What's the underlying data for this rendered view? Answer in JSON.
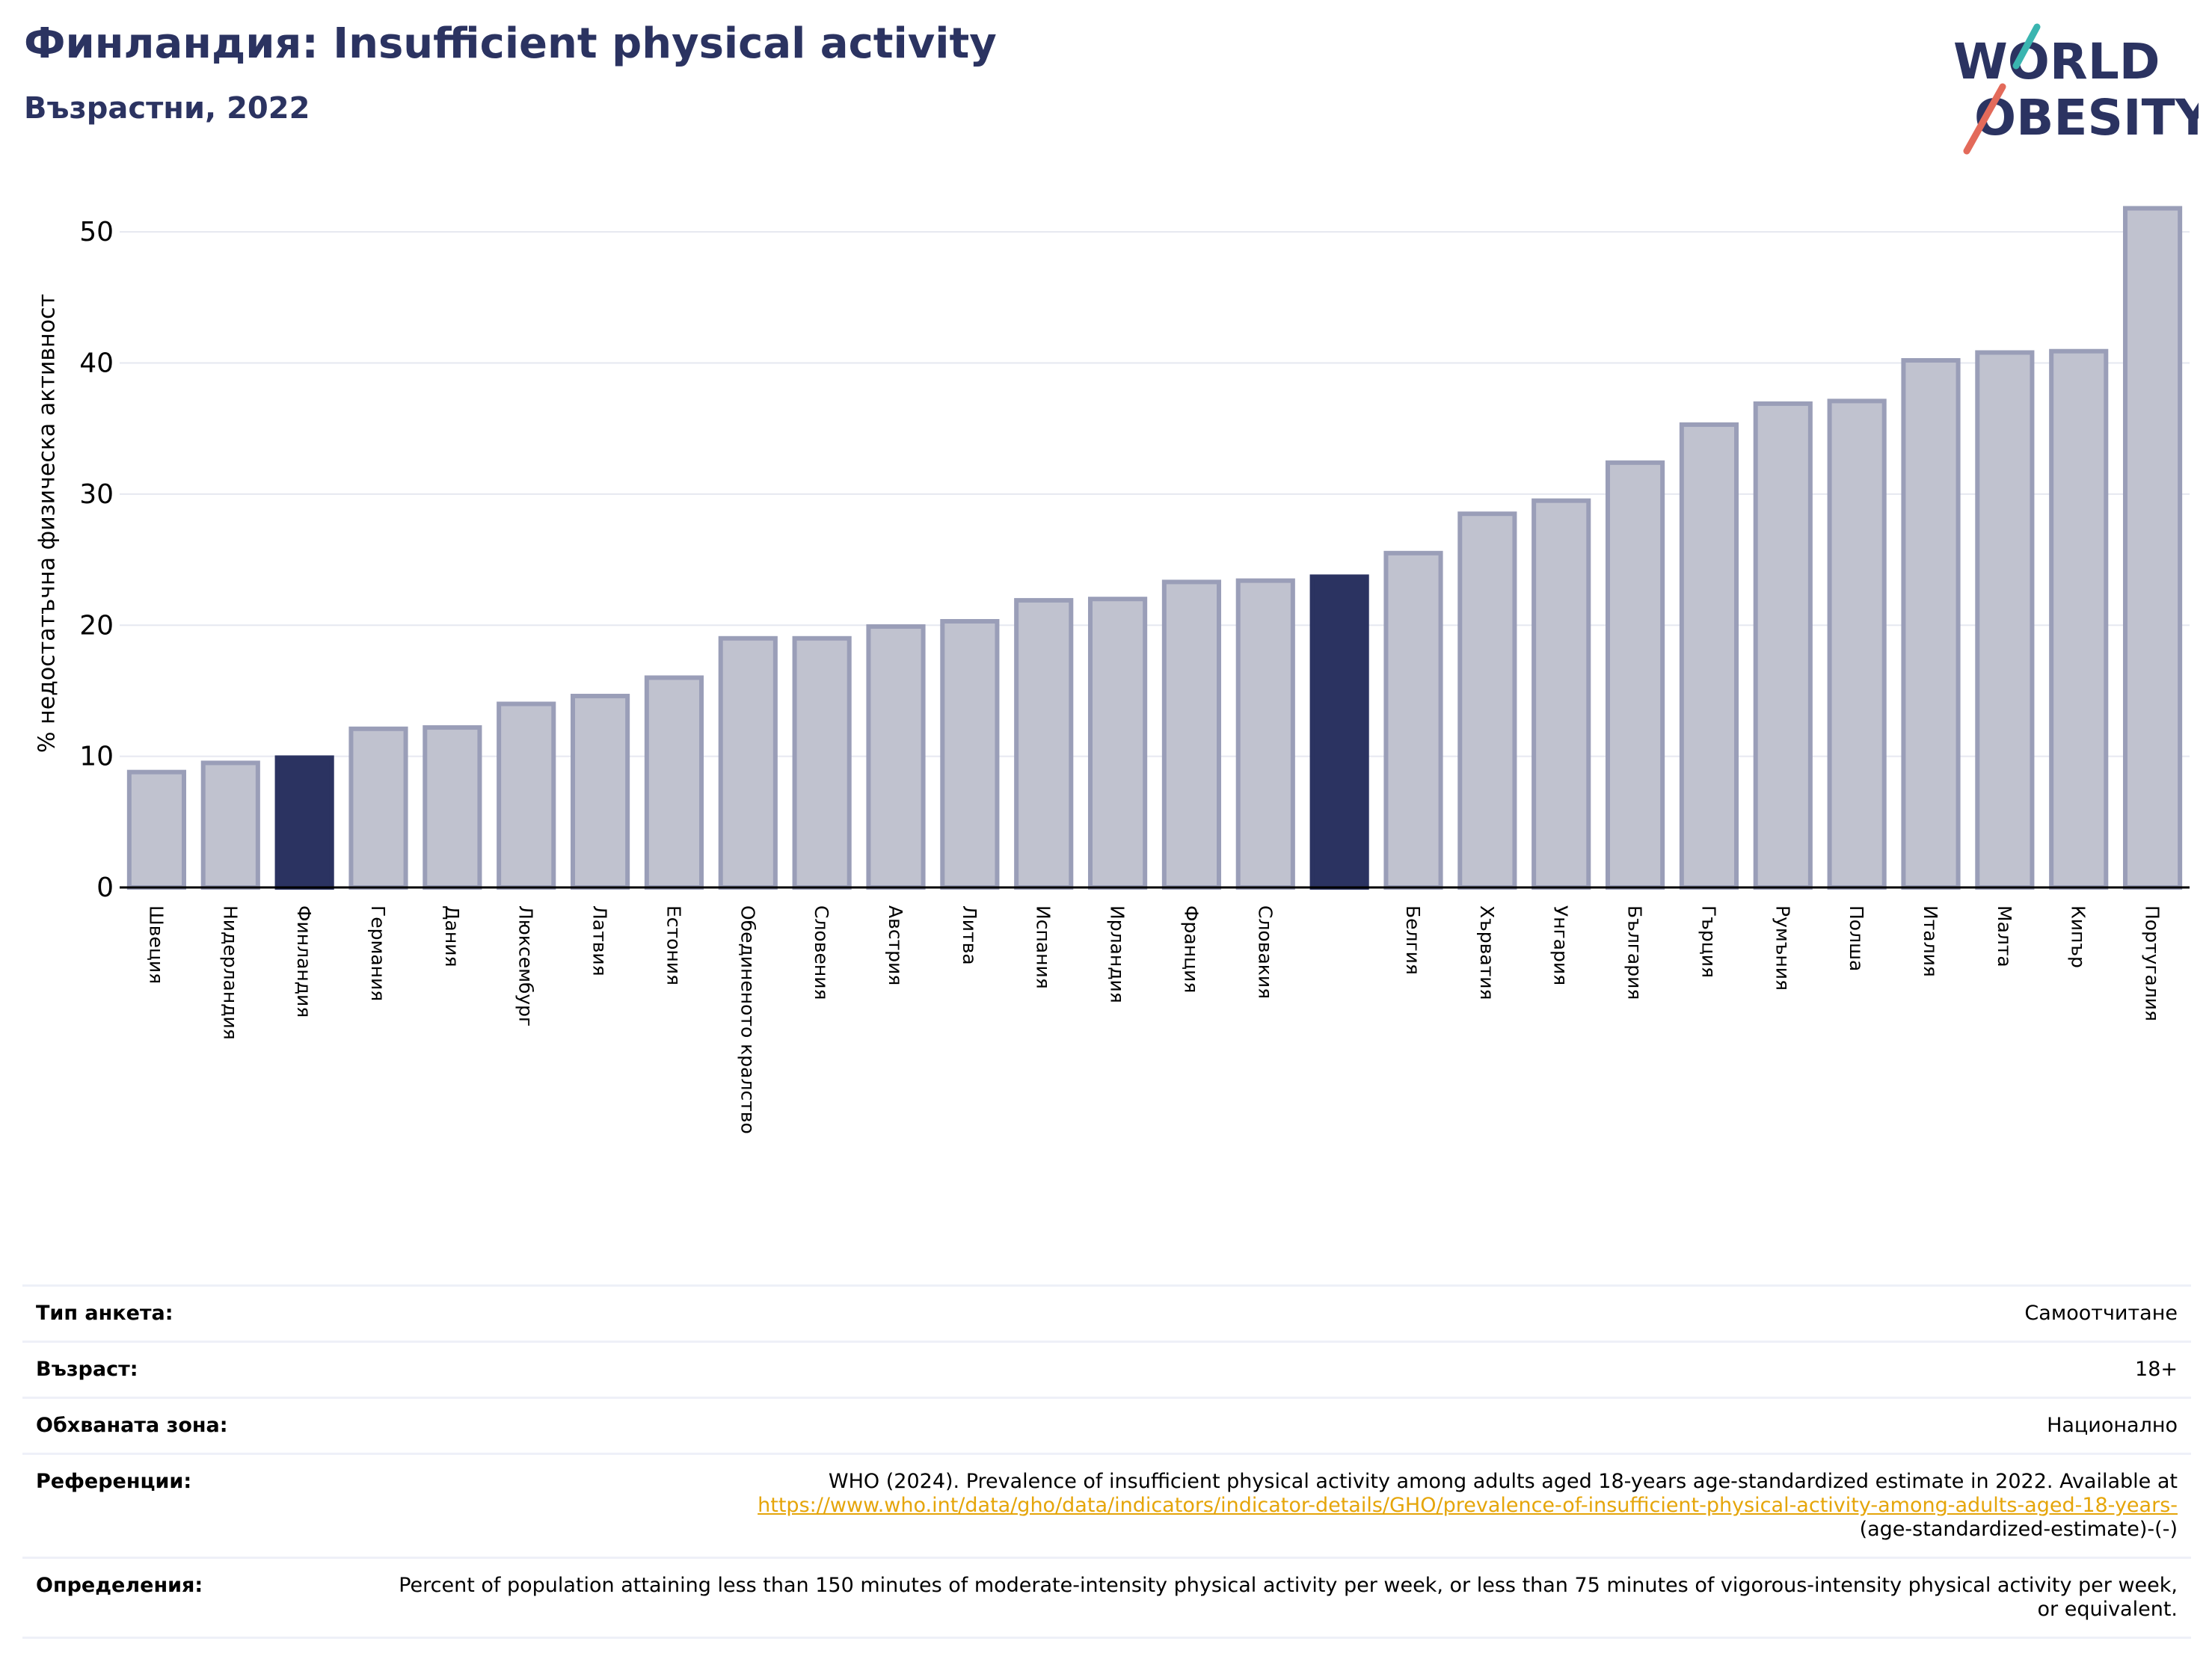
{
  "title": "Финландия: Insufficient physical activity",
  "subtitle": "Възрастни, 2022",
  "logo": {
    "line1": "WORLD",
    "line2": "OBESITY"
  },
  "colors": {
    "highlight": "#2b3361",
    "bar": "#c0c2cf",
    "bar_edge": "#9a9eb8",
    "title": "#2b3361",
    "grid": "#e6e8f0",
    "link": "#e5a50a"
  },
  "chart_data": {
    "type": "bar",
    "ylabel": "% недостатъчна физическа активност",
    "ylim": [
      0,
      54
    ],
    "yticks": [
      0,
      10,
      20,
      30,
      40,
      50
    ],
    "grid": true,
    "bars": [
      {
        "label": "Швеция",
        "value": 8.8,
        "highlight": false
      },
      {
        "label": "Нидерландия",
        "value": 9.5,
        "highlight": false
      },
      {
        "label": "Финландия",
        "value": 9.9,
        "highlight": true
      },
      {
        "label": "Германия",
        "value": 12.1,
        "highlight": false
      },
      {
        "label": "Дания",
        "value": 12.2,
        "highlight": false
      },
      {
        "label": "Люксембург",
        "value": 14.0,
        "highlight": false
      },
      {
        "label": "Латвия",
        "value": 14.6,
        "highlight": false
      },
      {
        "label": "Естония",
        "value": 16.0,
        "highlight": false
      },
      {
        "label": "Обединеното кралство",
        "value": 19.0,
        "highlight": false
      },
      {
        "label": "Словения",
        "value": 19.0,
        "highlight": false
      },
      {
        "label": "Австрия",
        "value": 19.9,
        "highlight": false
      },
      {
        "label": "Литва",
        "value": 20.3,
        "highlight": false
      },
      {
        "label": "Испания",
        "value": 21.9,
        "highlight": false
      },
      {
        "label": "Ирландия",
        "value": 22.0,
        "highlight": false
      },
      {
        "label": "Франция",
        "value": 23.3,
        "highlight": false
      },
      {
        "label": "Словакия",
        "value": 23.4,
        "highlight": false
      },
      {
        "label": "",
        "value": 23.7,
        "highlight": true
      },
      {
        "label": "Белгия",
        "value": 25.5,
        "highlight": false
      },
      {
        "label": "Хърватия",
        "value": 28.5,
        "highlight": false
      },
      {
        "label": "Унгария",
        "value": 29.5,
        "highlight": false
      },
      {
        "label": "България",
        "value": 32.4,
        "highlight": false
      },
      {
        "label": "Гърция",
        "value": 35.3,
        "highlight": false
      },
      {
        "label": "Румъния",
        "value": 36.9,
        "highlight": false
      },
      {
        "label": "Полша",
        "value": 37.1,
        "highlight": false
      },
      {
        "label": "Италия",
        "value": 40.2,
        "highlight": false
      },
      {
        "label": "Малта",
        "value": 40.8,
        "highlight": false
      },
      {
        "label": "Кипър",
        "value": 40.9,
        "highlight": false
      },
      {
        "label": "Португалия",
        "value": 51.8,
        "highlight": false
      }
    ]
  },
  "info": {
    "survey_label": "Тип анкета:",
    "survey_value": "Самоотчитане",
    "age_label": "Възраст:",
    "age_value": "18+",
    "area_label": "Обхваната зона:",
    "area_value": "Национално",
    "ref_label": "Референции:",
    "ref_text": "WHO (2024). Prevalence of insufficient physical activity among adults aged 18-years age-standardized estimate in 2022. Available at",
    "ref_link": "https://www.who.int/data/gho/data/indicators/indicator-details/GHO/prevalence-of-insufficient-physical-activity-among-adults-aged-18-years-",
    "ref_tail": "(age-standardized-estimate)-(-)",
    "def_label": "Определения:",
    "def_text": "Percent of population attaining less than 150 minutes of moderate-intensity physical activity per week, or less than 75 minutes of vigorous-intensity physical activity per week, or equivalent."
  }
}
